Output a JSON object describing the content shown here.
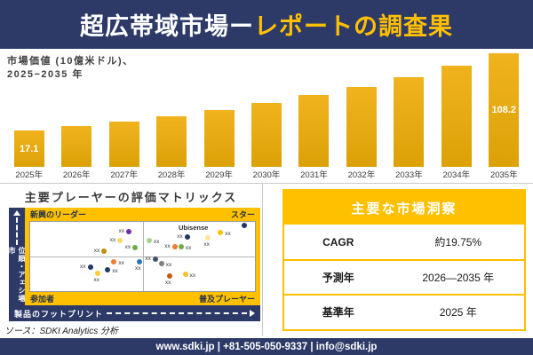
{
  "header": {
    "title_part1": "超広帯域市場ー",
    "title_part2": "レポートの調査果"
  },
  "bar_chart_labels": {
    "axis_line1": "市場価値  (10億米ドル)、",
    "axis_line2": "2025−2035 年"
  },
  "chart_data": [
    {
      "type": "bar",
      "title": "市場価値（10億米ドル）、2025−2035年",
      "categories": [
        "2025年",
        "2026年",
        "2027年",
        "2028年",
        "2029年",
        "2030年",
        "2031年",
        "2032年",
        "2033年",
        "2034年",
        "2035年"
      ],
      "values": [
        17.1,
        20.6,
        24.7,
        29.7,
        35.7,
        42.9,
        51.6,
        62.0,
        74.5,
        89.6,
        108.2
      ],
      "visible_value_labels": {
        "2025年": "17.1",
        "2035年": "108.2"
      },
      "values_note": "only first and last bars carry data labels; intermediate values estimated from bar heights and ~19.75% CAGR",
      "ylabel": "",
      "xlabel": "",
      "ylim": [
        0,
        120
      ],
      "grid": false,
      "legend": false,
      "bar_color": "#E8AA10"
    },
    {
      "type": "scatter",
      "title": "主要プレーヤーの評価マトリックス",
      "xlabel": "製品のフットプリント",
      "ylabel": "市場シェア・順位",
      "y_origin": "top",
      "quadrants": {
        "top_left": "新興のリーダー",
        "top_right": "スター",
        "bottom_left": "参加者",
        "bottom_right": "普及プレーヤー"
      },
      "annotations": [
        {
          "text": "Ubisense",
          "x": 66,
          "y": 3
        }
      ],
      "points": [
        {
          "x": 43.9,
          "y": 13.8,
          "color": "#7030A0",
          "label": "xx",
          "label_pos": "left"
        },
        {
          "x": 40.0,
          "y": 27.5,
          "color": "#FFD966",
          "label": "xx",
          "label_pos": "left"
        },
        {
          "x": 32.9,
          "y": 42.5,
          "color": "#BF9000",
          "label": "xx",
          "label_pos": "left"
        },
        {
          "x": 46.7,
          "y": 37.5,
          "color": "#70AD47",
          "label": "xx",
          "label_pos": "left"
        },
        {
          "x": 52.9,
          "y": 26.3,
          "color": "#A9D18E",
          "label": "xx",
          "label_pos": "right"
        },
        {
          "x": 69.8,
          "y": 21.3,
          "color": "#1F3864",
          "label": "xx",
          "label_pos": "left"
        },
        {
          "x": 79.2,
          "y": 22.5,
          "color": "#FFE699",
          "label": "xx",
          "label_pos": "below"
        },
        {
          "x": 84.7,
          "y": 15.0,
          "color": "#FFC000",
          "label": "xx",
          "label_pos": "right"
        },
        {
          "x": 95.3,
          "y": 5.0,
          "color": "#1F3864",
          "label": "",
          "label_pos": "left"
        },
        {
          "x": 64.3,
          "y": 36.3,
          "color": "#ED7D31",
          "label": "xx",
          "label_pos": "left"
        },
        {
          "x": 67.1,
          "y": 36.3,
          "color": "#70AD47",
          "label": "xx",
          "label_pos": "right"
        },
        {
          "x": 37.3,
          "y": 57.5,
          "color": "#ED7D31",
          "label": "xx",
          "label_pos": "right"
        },
        {
          "x": 48.6,
          "y": 57.5,
          "color": "#2E75B6",
          "label": "xx",
          "label_pos": "below"
        },
        {
          "x": 26.7,
          "y": 65.0,
          "color": "#203864",
          "label": "xx",
          "label_pos": "left"
        },
        {
          "x": 30.2,
          "y": 73.8,
          "color": "#FFCC33",
          "label": "xx",
          "label_pos": "below"
        },
        {
          "x": 34.5,
          "y": 68.8,
          "color": "#1F3864",
          "label": "xx",
          "label_pos": "right"
        },
        {
          "x": 55.7,
          "y": 53.8,
          "color": "#44546A",
          "label": "xx",
          "label_pos": "left"
        },
        {
          "x": 58.4,
          "y": 60.0,
          "color": "#808080",
          "label": "xx",
          "label_pos": "right"
        },
        {
          "x": 62.0,
          "y": 78.8,
          "color": "#C55A11",
          "label": "xx",
          "label_pos": "below"
        },
        {
          "x": 69.0,
          "y": 75.0,
          "color": "#F2C230",
          "label": "xx",
          "label_pos": "right"
        }
      ]
    }
  ],
  "insights_table": {
    "title": "主要な市場洞察",
    "rows": [
      {
        "label": "CAGR",
        "value": "約19.75%"
      },
      {
        "label": "予測年",
        "value": "2026—2035 年"
      },
      {
        "label": "基準年",
        "value": "2025 年"
      }
    ]
  },
  "source": "ソース：SDKI Analytics 分析",
  "footer": {
    "text": "www.sdki.jp | +81-505-050-9337 | info@sdki.jp"
  },
  "colors": {
    "navy": "#2D3A68",
    "gold": "#FFC000",
    "bar_gold_top": "#F0B31E",
    "bar_gold_bottom": "#DCA107"
  }
}
